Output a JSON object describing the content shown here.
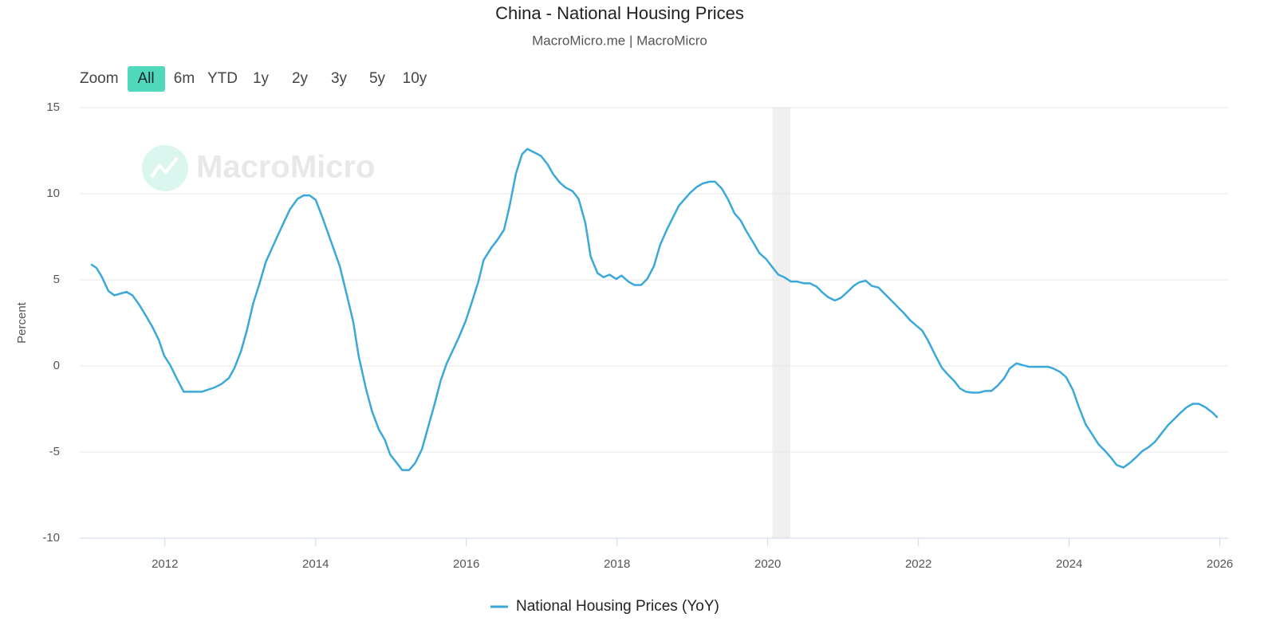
{
  "zoom": {
    "label": "Zoom",
    "buttons": [
      "All",
      "6m",
      "YTD",
      "1y",
      "2y",
      "3y",
      "5y",
      "10y"
    ],
    "active": 0
  },
  "chart_data": {
    "type": "line",
    "title": "China - National Housing Prices",
    "subtitle": "MacroMicro.me | MacroMicro",
    "watermark": "MacroMicro",
    "ylabel": "Percent",
    "x": [
      2011.02,
      2011.09,
      2011.16,
      2011.25,
      2011.33,
      2011.49,
      2011.57,
      2011.66,
      2011.75,
      2011.83,
      2011.92,
      2011.99,
      2012.07,
      2012.16,
      2012.25,
      2012.49,
      2012.66,
      2012.75,
      2012.85,
      2012.92,
      2013.01,
      2013.09,
      2013.17,
      2013.26,
      2013.34,
      2013.5,
      2013.66,
      2013.76,
      2013.84,
      2013.92,
      2014.0,
      2014.08,
      2014.17,
      2014.32,
      2014.41,
      2014.5,
      2014.57,
      2014.67,
      2014.75,
      2014.84,
      2014.92,
      2014.99,
      2015.08,
      2015.15,
      2015.24,
      2015.32,
      2015.41,
      2015.49,
      2015.58,
      2015.66,
      2015.74,
      2015.82,
      2015.9,
      2015.99,
      2016.07,
      2016.16,
      2016.23,
      2016.33,
      2016.41,
      2016.5,
      2016.57,
      2016.66,
      2016.74,
      2016.81,
      2016.9,
      2016.99,
      2017.08,
      2017.15,
      2017.24,
      2017.32,
      2017.41,
      2017.49,
      2017.58,
      2017.65,
      2017.74,
      2017.82,
      2017.9,
      2017.99,
      2018.06,
      2018.15,
      2018.23,
      2018.32,
      2018.4,
      2018.49,
      2018.57,
      2018.66,
      2018.82,
      2018.9,
      2018.97,
      2019.06,
      2019.14,
      2019.23,
      2019.3,
      2019.39,
      2019.47,
      2019.56,
      2019.64,
      2019.72,
      2019.81,
      2019.89,
      2019.98,
      2020.05,
      2020.14,
      2020.22,
      2020.31,
      2020.39,
      2020.48,
      2020.56,
      2020.65,
      2020.73,
      2020.8,
      2020.89,
      2020.97,
      2021.06,
      2021.14,
      2021.21,
      2021.3,
      2021.38,
      2021.47,
      2021.64,
      2021.81,
      2021.89,
      2022.05,
      2022.13,
      2022.22,
      2022.31,
      2022.39,
      2022.48,
      2022.55,
      2022.63,
      2022.72,
      2022.8,
      2022.89,
      2022.97,
      2023.05,
      2023.14,
      2023.21,
      2023.3,
      2023.38,
      2023.47,
      2023.64,
      2023.72,
      2023.79,
      2023.88,
      2023.96,
      2024.05,
      2024.13,
      2024.22,
      2024.31,
      2024.39,
      2024.48,
      2024.56,
      2024.63,
      2024.72,
      2024.8,
      2024.89,
      2024.97,
      2025.06,
      2025.14,
      2025.22,
      2025.31,
      2025.38,
      2025.47,
      2025.56,
      2025.64,
      2025.72,
      2025.81,
      2025.9,
      2025.97
    ],
    "series": [
      {
        "name": "National Housing Prices (YoY)",
        "color": "#3aa8d8",
        "values": [
          5.9,
          5.7,
          5.2,
          4.35,
          4.1,
          4.3,
          4.1,
          3.55,
          2.9,
          2.3,
          1.5,
          0.6,
          0.05,
          -0.75,
          -1.5,
          -1.5,
          -1.25,
          -1.05,
          -0.7,
          -0.15,
          0.85,
          2.1,
          3.6,
          4.85,
          6.05,
          7.6,
          9.1,
          9.7,
          9.9,
          9.9,
          9.65,
          8.75,
          7.65,
          5.8,
          4.2,
          2.55,
          0.6,
          -1.35,
          -2.65,
          -3.7,
          -4.3,
          -5.15,
          -5.65,
          -6.05,
          -6.05,
          -5.65,
          -4.85,
          -3.6,
          -2.2,
          -0.85,
          0.15,
          0.9,
          1.65,
          2.6,
          3.65,
          4.9,
          6.15,
          6.85,
          7.3,
          7.9,
          9.2,
          11.2,
          12.3,
          12.6,
          12.4,
          12.2,
          11.7,
          11.15,
          10.65,
          10.35,
          10.15,
          9.7,
          8.3,
          6.35,
          5.4,
          5.15,
          5.3,
          5.05,
          5.25,
          4.9,
          4.7,
          4.7,
          5.05,
          5.8,
          7.0,
          7.9,
          9.3,
          9.7,
          10.05,
          10.4,
          10.6,
          10.7,
          10.7,
          10.3,
          9.7,
          8.85,
          8.45,
          7.8,
          7.15,
          6.55,
          6.2,
          5.8,
          5.3,
          5.15,
          4.9,
          4.9,
          4.8,
          4.8,
          4.6,
          4.25,
          4.0,
          3.8,
          3.95,
          4.3,
          4.65,
          4.85,
          4.95,
          4.65,
          4.55,
          3.8,
          3.05,
          2.65,
          2.05,
          1.45,
          0.65,
          -0.1,
          -0.5,
          -0.9,
          -1.3,
          -1.5,
          -1.55,
          -1.55,
          -1.45,
          -1.45,
          -1.15,
          -0.7,
          -0.15,
          0.15,
          0.05,
          -0.05,
          -0.05,
          -0.05,
          -0.15,
          -0.35,
          -0.65,
          -1.4,
          -2.4,
          -3.4,
          -4.0,
          -4.55,
          -4.95,
          -5.35,
          -5.75,
          -5.9,
          -5.65,
          -5.3,
          -4.95,
          -4.7,
          -4.4,
          -3.95,
          -3.45,
          -3.15,
          -2.75,
          -2.4,
          -2.2,
          -2.2,
          -2.4,
          -2.7,
          -3.0
        ]
      }
    ],
    "xlim": [
      2010.87,
      2026.11
    ],
    "xticks": [
      2012,
      2014,
      2016,
      2018,
      2020,
      2022,
      2024,
      2026
    ],
    "ylim": [
      -10,
      15
    ],
    "yticks": [
      -10,
      -5,
      0,
      5,
      10,
      15
    ],
    "grid": true,
    "highlight_x": [
      2020.06,
      2020.3
    ],
    "legend": "bottom"
  }
}
